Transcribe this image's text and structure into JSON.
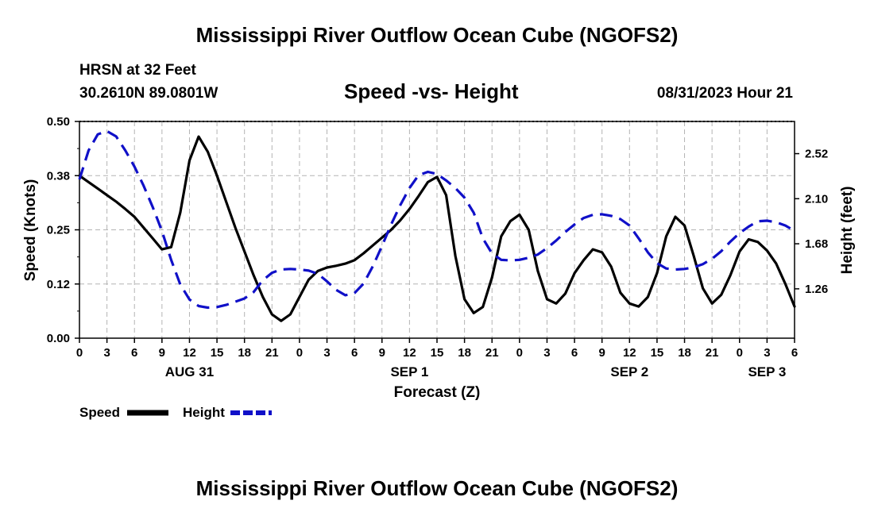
{
  "page": {
    "title": "Mississippi River Outflow Ocean Cube (NGOFS2)",
    "title_bottom": "Mississippi River Outflow Ocean Cube (NGOFS2)",
    "station": "HRSN at 32 Feet",
    "coords": "30.2610N  89.0801W",
    "subtitle": "Speed -vs- Height",
    "datetime": "08/31/2023 Hour 21"
  },
  "colors": {
    "speed": "#000000",
    "height": "#1010c8",
    "grid": "#b4b4b4"
  },
  "chart_data": {
    "type": "line",
    "title": "Speed -vs- Height",
    "xlabel": "Forecast (Z)",
    "ylabel": "Speed (Knots)",
    "ylabel_right": "Height (feet)",
    "x_range": [
      0,
      78
    ],
    "ylim": [
      0,
      0.5
    ],
    "ylim_right": [
      0.8,
      2.82
    ],
    "grid": true,
    "legend_position": "bottom-left",
    "x_ticks": [
      {
        "x": 0,
        "label": "0"
      },
      {
        "x": 3,
        "label": "3"
      },
      {
        "x": 6,
        "label": "6"
      },
      {
        "x": 9,
        "label": "9"
      },
      {
        "x": 12,
        "label": "12"
      },
      {
        "x": 15,
        "label": "15"
      },
      {
        "x": 18,
        "label": "18"
      },
      {
        "x": 21,
        "label": "21"
      },
      {
        "x": 24,
        "label": "0"
      },
      {
        "x": 27,
        "label": "3"
      },
      {
        "x": 30,
        "label": "6"
      },
      {
        "x": 33,
        "label": "9"
      },
      {
        "x": 36,
        "label": "12"
      },
      {
        "x": 39,
        "label": "15"
      },
      {
        "x": 42,
        "label": "18"
      },
      {
        "x": 45,
        "label": "21"
      },
      {
        "x": 48,
        "label": "0"
      },
      {
        "x": 51,
        "label": "3"
      },
      {
        "x": 54,
        "label": "6"
      },
      {
        "x": 57,
        "label": "9"
      },
      {
        "x": 60,
        "label": "12"
      },
      {
        "x": 63,
        "label": "15"
      },
      {
        "x": 66,
        "label": "18"
      },
      {
        "x": 69,
        "label": "21"
      },
      {
        "x": 72,
        "label": "0"
      },
      {
        "x": 75,
        "label": "3"
      },
      {
        "x": 78,
        "label": "6"
      }
    ],
    "day_labels": [
      {
        "x": 12,
        "label": "AUG 31"
      },
      {
        "x": 36,
        "label": "SEP 1"
      },
      {
        "x": 60,
        "label": "SEP 2"
      },
      {
        "x": 75,
        "label": "SEP 3"
      }
    ],
    "y_ticks": [
      {
        "v": 0,
        "label": "0.00"
      },
      {
        "v": 0.125,
        "label": "0.12"
      },
      {
        "v": 0.25,
        "label": "0.25"
      },
      {
        "v": 0.375,
        "label": "0.38"
      },
      {
        "v": 0.5,
        "label": "0.50"
      }
    ],
    "y_ticks_right": [
      {
        "v": 1.26,
        "label": "1.26"
      },
      {
        "v": 1.68,
        "label": "1.68"
      },
      {
        "v": 2.1,
        "label": "2.10"
      },
      {
        "v": 2.52,
        "label": "2.52"
      }
    ],
    "series": [
      {
        "name": "Speed",
        "axis": "left",
        "style": "solid",
        "x": [
          0,
          1,
          2,
          3,
          4,
          5,
          6,
          7,
          8,
          9,
          10,
          11,
          12,
          13,
          14,
          15,
          16,
          17,
          18,
          19,
          20,
          21,
          22,
          23,
          24,
          25,
          26,
          27,
          28,
          29,
          30,
          31,
          32,
          33,
          34,
          35,
          36,
          37,
          38,
          39,
          40,
          41,
          42,
          43,
          44,
          45,
          46,
          47,
          48,
          49,
          50,
          51,
          52,
          53,
          54,
          55,
          56,
          57,
          58,
          59,
          60,
          61,
          62,
          63,
          64,
          65,
          66,
          67,
          68,
          69,
          70,
          71,
          72,
          73,
          74,
          75,
          76,
          77,
          78
        ],
        "values": [
          0.375,
          0.36,
          0.345,
          0.33,
          0.315,
          0.298,
          0.28,
          0.255,
          0.23,
          0.205,
          0.21,
          0.29,
          0.41,
          0.465,
          0.43,
          0.375,
          0.315,
          0.255,
          0.2,
          0.145,
          0.095,
          0.055,
          0.04,
          0.055,
          0.095,
          0.135,
          0.155,
          0.163,
          0.167,
          0.172,
          0.18,
          0.196,
          0.214,
          0.232,
          0.25,
          0.272,
          0.298,
          0.328,
          0.36,
          0.372,
          0.33,
          0.19,
          0.09,
          0.058,
          0.072,
          0.14,
          0.235,
          0.27,
          0.285,
          0.25,
          0.155,
          0.09,
          0.08,
          0.103,
          0.15,
          0.18,
          0.205,
          0.198,
          0.165,
          0.105,
          0.08,
          0.073,
          0.095,
          0.15,
          0.235,
          0.28,
          0.26,
          0.19,
          0.115,
          0.08,
          0.1,
          0.145,
          0.2,
          0.228,
          0.222,
          0.202,
          0.172,
          0.125,
          0.073
        ]
      },
      {
        "name": "Height",
        "axis": "right",
        "style": "dashed",
        "x": [
          0,
          1,
          2,
          3,
          4,
          5,
          6,
          7,
          8,
          9,
          10,
          11,
          12,
          13,
          14,
          15,
          16,
          17,
          18,
          19,
          20,
          21,
          22,
          23,
          24,
          25,
          26,
          27,
          28,
          29,
          30,
          31,
          32,
          33,
          34,
          35,
          36,
          37,
          38,
          39,
          40,
          41,
          42,
          43,
          44,
          45,
          46,
          47,
          48,
          49,
          50,
          51,
          52,
          53,
          54,
          55,
          56,
          57,
          58,
          59,
          60,
          61,
          62,
          63,
          64,
          65,
          66,
          67,
          68,
          69,
          70,
          71,
          72,
          73,
          74,
          75,
          76,
          77,
          78
        ],
        "values": [
          2.28,
          2.55,
          2.7,
          2.73,
          2.68,
          2.55,
          2.4,
          2.22,
          2.02,
          1.8,
          1.53,
          1.3,
          1.16,
          1.1,
          1.085,
          1.09,
          1.11,
          1.14,
          1.17,
          1.23,
          1.34,
          1.41,
          1.44,
          1.445,
          1.44,
          1.43,
          1.4,
          1.33,
          1.25,
          1.2,
          1.22,
          1.31,
          1.47,
          1.66,
          1.86,
          2.04,
          2.2,
          2.32,
          2.35,
          2.33,
          2.27,
          2.2,
          2.11,
          1.97,
          1.73,
          1.59,
          1.53,
          1.525,
          1.53,
          1.55,
          1.58,
          1.64,
          1.71,
          1.79,
          1.86,
          1.92,
          1.95,
          1.955,
          1.94,
          1.91,
          1.85,
          1.73,
          1.6,
          1.5,
          1.45,
          1.44,
          1.445,
          1.46,
          1.49,
          1.54,
          1.61,
          1.7,
          1.78,
          1.84,
          1.89,
          1.895,
          1.88,
          1.85,
          1.8
        ]
      }
    ]
  }
}
